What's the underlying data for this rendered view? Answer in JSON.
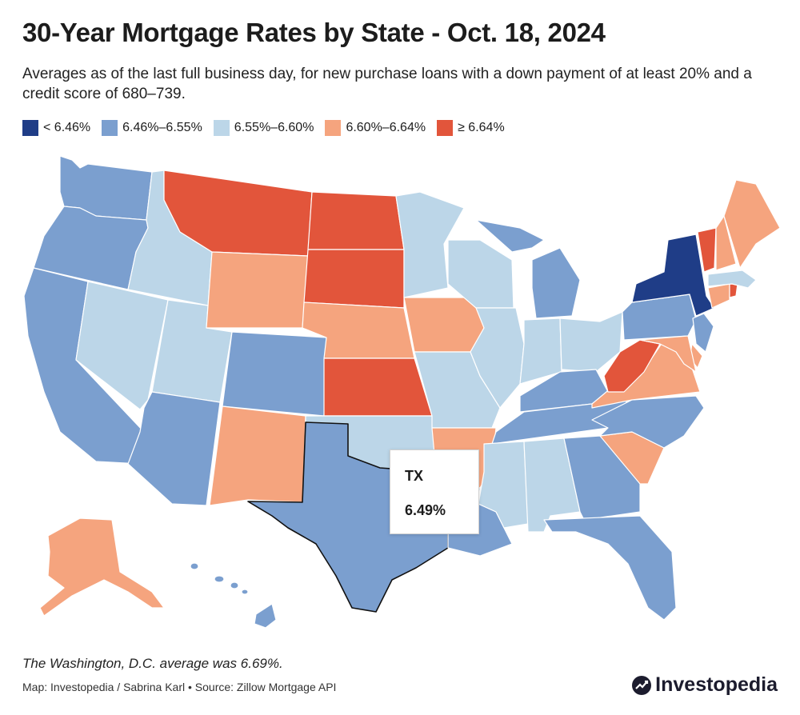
{
  "title": "30-Year Mortgage Rates by State - Oct. 18, 2024",
  "subtitle": "Averages as of the last full business day, for new purchase loans with a down payment of at least 20% and a credit score of 680–739.",
  "legend": [
    {
      "label": "< 6.46%",
      "color": "#1f3d87"
    },
    {
      "label": "6.46%–6.55%",
      "color": "#7b9fcf"
    },
    {
      "label": "6.55%–6.60%",
      "color": "#bcd6e8"
    },
    {
      "label": "6.60%–6.64%",
      "color": "#f5a47e"
    },
    {
      "label": "≥ 6.64%",
      "color": "#e2553b"
    }
  ],
  "tooltip": {
    "state": "TX",
    "rate": "6.49%"
  },
  "note": "The Washington, D.C. average was 6.69%.",
  "credit": "Map: Investopedia / Sabrina Karl • Source: Zillow Mortgage API",
  "logo": "Investopedia",
  "map": {
    "selected_state": "TX",
    "state_class": {
      "WA": "6.46%–6.55%",
      "OR": "6.46%–6.55%",
      "CA": "6.46%–6.55%",
      "ID": "6.55%–6.60%",
      "NV": "6.55%–6.60%",
      "UT": "6.55%–6.60%",
      "AZ": "6.46%–6.55%",
      "MT": "≥ 6.64%",
      "WY": "6.60%–6.64%",
      "CO": "6.46%–6.55%",
      "NM": "6.60%–6.64%",
      "ND": "≥ 6.64%",
      "SD": "≥ 6.64%",
      "NE": "6.60%–6.64%",
      "KS": "≥ 6.64%",
      "OK": "6.55%–6.60%",
      "TX": "6.46%–6.55%",
      "MN": "6.55%–6.60%",
      "IA": "6.60%–6.64%",
      "MO": "6.55%–6.60%",
      "AR": "6.60%–6.64%",
      "LA": "6.46%–6.55%",
      "WI": "6.55%–6.60%",
      "IL": "6.55%–6.60%",
      "MI": "6.46%–6.55%",
      "IN": "6.55%–6.60%",
      "OH": "6.55%–6.60%",
      "KY": "6.46%–6.55%",
      "TN": "6.46%–6.55%",
      "MS": "6.55%–6.60%",
      "AL": "6.55%–6.60%",
      "GA": "6.46%–6.55%",
      "FL": "6.46%–6.55%",
      "SC": "6.60%–6.64%",
      "NC": "6.46%–6.55%",
      "VA": "6.60%–6.64%",
      "WV": "≥ 6.64%",
      "PA": "6.46%–6.55%",
      "NY": "< 6.46%",
      "NJ": "6.46%–6.55%",
      "DE": "6.60%–6.64%",
      "MD": "6.60%–6.64%",
      "CT": "6.60%–6.64%",
      "RI": "≥ 6.64%",
      "MA": "6.55%–6.60%",
      "VT": "≥ 6.64%",
      "NH": "6.60%–6.64%",
      "ME": "6.60%–6.64%",
      "AK": "6.60%–6.64%",
      "HI": "6.46%–6.55%"
    }
  }
}
